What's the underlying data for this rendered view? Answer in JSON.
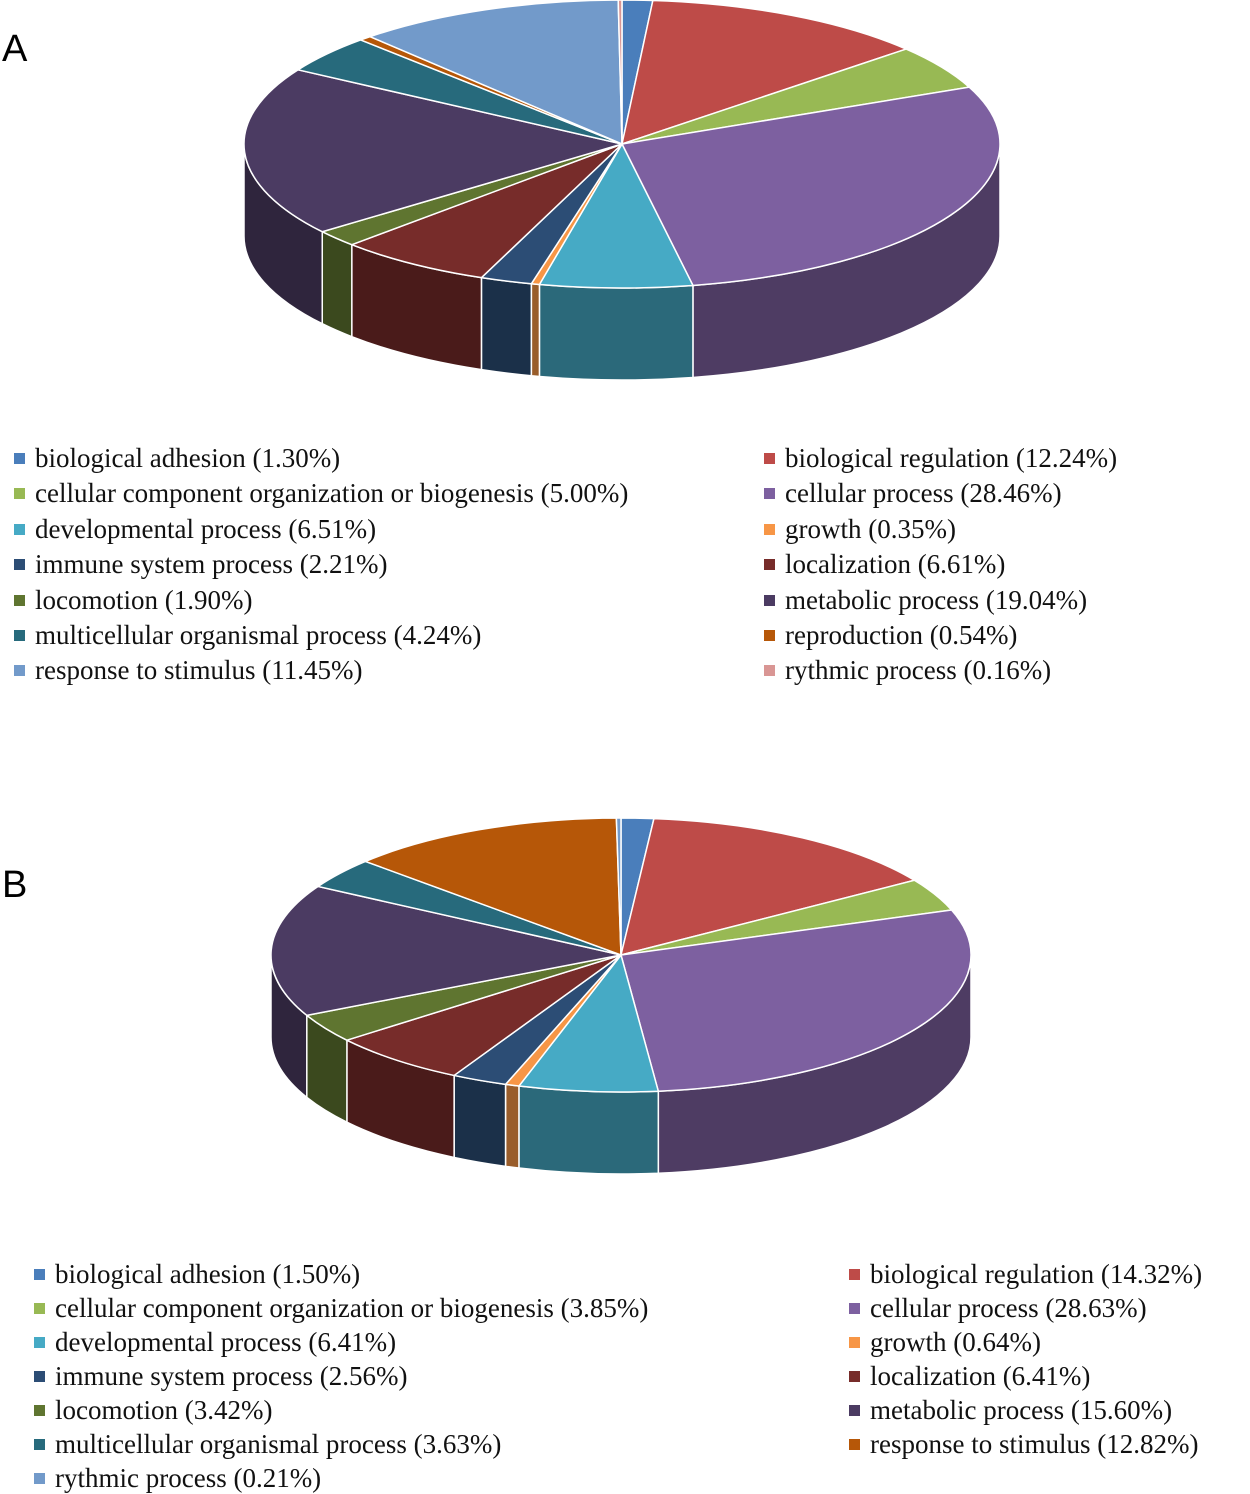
{
  "chart_data": [
    {
      "type": "pie",
      "panel_label": "A",
      "legend_position": "bottom",
      "categories": [
        "biological adhesion",
        "biological regulation",
        "cellular component organization or biogenesis",
        "cellular process",
        "developmental process",
        "growth",
        "immune system process",
        "localization",
        "locomotion",
        "metabolic process",
        "multicellular organismal process",
        "reproduction",
        "response to stimulus",
        "rythmic process"
      ],
      "values": [
        1.3,
        12.24,
        5.0,
        28.46,
        6.51,
        0.35,
        2.21,
        6.61,
        1.9,
        19.04,
        4.24,
        0.54,
        11.45,
        0.16
      ],
      "colors": [
        "#4A7EBB",
        "#BE4B48",
        "#98B954",
        "#7D60A0",
        "#46AAC5",
        "#F79646",
        "#2C4D75",
        "#772C2A",
        "#5F7530",
        "#4B3B62",
        "#276A7C",
        "#B65708",
        "#729ACA",
        "#D99694"
      ],
      "legend": [
        "biological adhesion (1.30%)",
        "biological regulation (12.24%)",
        "cellular component organization or biogenesis (5.00%)",
        "cellular process (28.46%)",
        "developmental process (6.51%)",
        "growth (0.35%)",
        "immune system process (2.21%)",
        "localization (6.61%)",
        "locomotion (1.90%)",
        "metabolic process (19.04%)",
        "multicellular organismal process (4.24%)",
        "reproduction (0.54%)",
        "response to stimulus (11.45%)",
        "rythmic process (0.16%)"
      ]
    },
    {
      "type": "pie",
      "panel_label": "B",
      "legend_position": "bottom",
      "categories": [
        "biological adhesion",
        "biological regulation",
        "cellular component organization or biogenesis",
        "cellular process",
        "developmental process",
        "growth",
        "immune system process",
        "localization",
        "locomotion",
        "metabolic process",
        "multicellular organismal process",
        "response to stimulus",
        "rythmic process"
      ],
      "values": [
        1.5,
        14.32,
        3.85,
        28.63,
        6.41,
        0.64,
        2.56,
        6.41,
        3.42,
        15.6,
        3.63,
        12.82,
        0.21
      ],
      "colors": [
        "#4A7EBB",
        "#BE4B48",
        "#98B954",
        "#7D60A0",
        "#46AAC5",
        "#F79646",
        "#2C4D75",
        "#772C2A",
        "#5F7530",
        "#4B3B62",
        "#276A7C",
        "#B65708",
        "#729ACA"
      ],
      "legend": [
        "biological adhesion (1.50%)",
        "biological regulation (14.32%)",
        "cellular component organization or biogenesis (3.85%)",
        "cellular process (28.63%)",
        "developmental process (6.41%)",
        "growth (0.64%)",
        "immune system process (2.56%)",
        "localization (6.41%)",
        "locomotion (3.42%)",
        "metabolic process (15.60%)",
        "multicellular organismal process (3.63%)",
        "response to stimulus (12.82%)",
        "rythmic process (0.21%)"
      ]
    }
  ]
}
